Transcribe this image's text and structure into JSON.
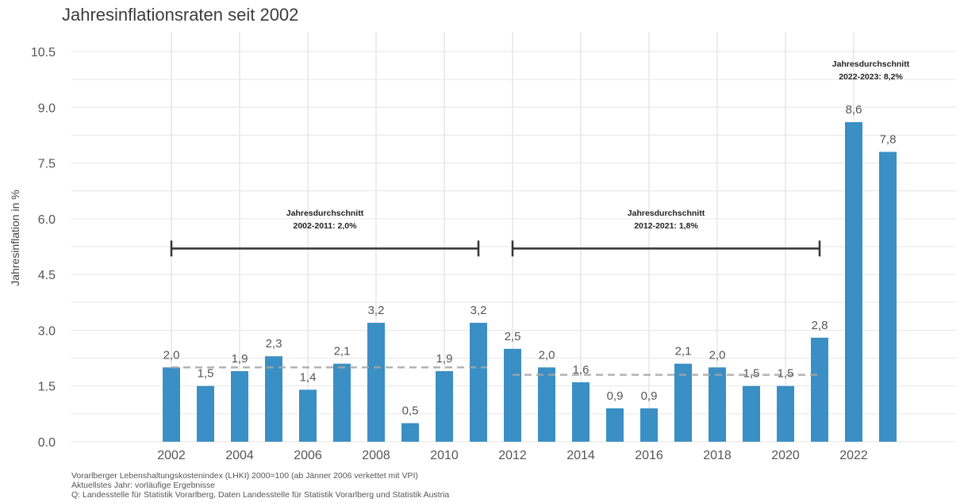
{
  "title": "Jahresinflationsraten seit 2002",
  "footnotes": [
    "Vorarlberger Lebenshaltungskostenindex (LHKI) 2000=100 (ab Jänner 2006 verkettet mit VPI)",
    "Aktuellstes Jahr: vorläufige Ergebnisse",
    "Q: Landesstelle für Statistik Vorarlberg, Daten Landesstelle für Statistik Vorarlberg und Statistik Austria"
  ],
  "colors": {
    "bar": "#3a8fc4",
    "dashed": "#a6a6a6",
    "bracket": "#333333",
    "grid": "#e6e6e6"
  },
  "chart_data": {
    "type": "bar",
    "title": "Jahresinflationsraten seit 2002",
    "xlabel": "",
    "ylabel": "Jahresinflation in %",
    "ylim": [
      0,
      10.5
    ],
    "yticks": [
      0.0,
      1.5,
      3.0,
      4.5,
      6.0,
      7.5,
      9.0,
      10.5
    ],
    "ytick_labels": [
      "0.0",
      "1.5",
      "3.0",
      "4.5",
      "6.0",
      "7.5",
      "9.0",
      "10.5"
    ],
    "xticks": [
      2002,
      2004,
      2006,
      2008,
      2010,
      2012,
      2014,
      2016,
      2018,
      2020,
      2022
    ],
    "x_range": [
      1998,
      2025
    ],
    "grid": true,
    "categories": [
      2002,
      2003,
      2004,
      2005,
      2006,
      2007,
      2008,
      2009,
      2010,
      2011,
      2012,
      2013,
      2014,
      2015,
      2016,
      2017,
      2018,
      2019,
      2020,
      2021,
      2022,
      2023
    ],
    "values": [
      2.0,
      1.5,
      1.9,
      2.3,
      1.4,
      2.1,
      3.2,
      0.5,
      1.9,
      3.2,
      2.5,
      2.0,
      1.6,
      0.9,
      0.9,
      2.1,
      2.0,
      1.5,
      1.5,
      2.8,
      8.6,
      7.8
    ],
    "value_labels": [
      "2,0",
      "1,5",
      "1,9",
      "2,3",
      "1,4",
      "2,1",
      "3,2",
      "0,5",
      "1,9",
      "3,2",
      "2,5",
      "2,0",
      "1,6",
      "0,9",
      "0,9",
      "2,1",
      "2,0",
      "1,5",
      "1,5",
      "2,8",
      "8,6",
      "7,8"
    ],
    "averages": [
      {
        "from": 2002,
        "to": 2011,
        "value": 2.0,
        "label_line1": "Jahresdurchschnitt",
        "label_line2": "2002-2011: 2,0%",
        "bracket_at": 5.2
      },
      {
        "from": 2012,
        "to": 2021,
        "value": 1.8,
        "label_line1": "Jahresdurchschnitt",
        "label_line2": "2012-2021: 1,8%",
        "bracket_at": 5.2
      },
      {
        "from": 2022,
        "to": 2023,
        "value": 8.2,
        "label_line1": "Jahresdurchschnitt",
        "label_line2": "2022-2023: 8,2%",
        "bracket_at": null
      }
    ]
  }
}
